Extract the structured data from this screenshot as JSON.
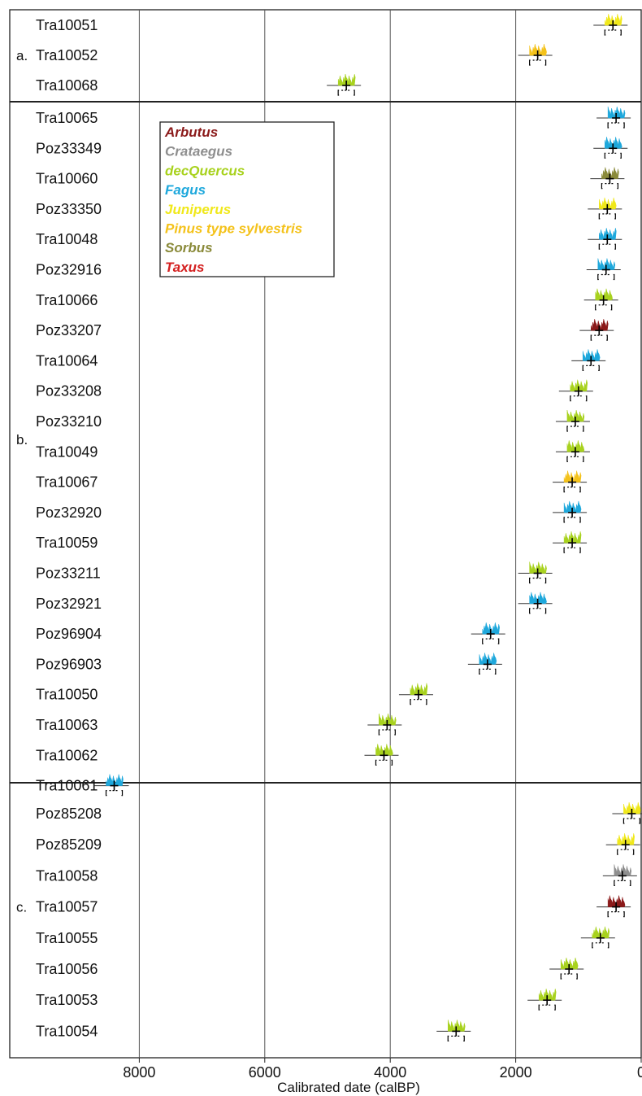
{
  "chart_data": {
    "type": "scatter",
    "xlabel": "Calibrated date (calBP)",
    "xlim": [
      8600,
      0
    ],
    "x_ticks": [
      8000,
      6000,
      4000,
      2000,
      0
    ],
    "x_reversed": true,
    "grid": "vertical",
    "legend_position": "top-left",
    "legend": [
      {
        "name": "Arbutus",
        "color": "#8b1a1a"
      },
      {
        "name": "Crataegus",
        "color": "#8e8e8e"
      },
      {
        "name": "decQuercus",
        "color": "#a8d21e"
      },
      {
        "name": "Fagus",
        "color": "#1ea8dc"
      },
      {
        "name": "Juniperus",
        "color": "#f0e81a"
      },
      {
        "name": "Pinus type sylvestris",
        "color": "#f4c21a"
      },
      {
        "name": "Sorbus",
        "color": "#8a8a3a"
      },
      {
        "name": "Taxus",
        "color": "#d42020"
      }
    ],
    "groups": [
      {
        "label": "a.",
        "samples": [
          {
            "name": "Tra10051",
            "date": 450,
            "taxon": "Juniperus"
          },
          {
            "name": "Tra10052",
            "date": 1650,
            "taxon": "Pinus type sylvestris"
          },
          {
            "name": "Tra10068",
            "date": 4700,
            "taxon": "decQuercus"
          }
        ]
      },
      {
        "label": "b.",
        "samples": [
          {
            "name": "Tra10065",
            "date": 400,
            "taxon": "Fagus"
          },
          {
            "name": "Poz33349",
            "date": 450,
            "taxon": "Fagus"
          },
          {
            "name": "Tra10060",
            "date": 500,
            "taxon": "Sorbus"
          },
          {
            "name": "Poz33350",
            "date": 540,
            "taxon": "Juniperus"
          },
          {
            "name": "Tra10048",
            "date": 540,
            "taxon": "Fagus"
          },
          {
            "name": "Poz32916",
            "date": 560,
            "taxon": "Fagus"
          },
          {
            "name": "Tra10066",
            "date": 600,
            "taxon": "decQuercus"
          },
          {
            "name": "Poz33207",
            "date": 670,
            "taxon": "Arbutus"
          },
          {
            "name": "Tra10064",
            "date": 800,
            "taxon": "Fagus"
          },
          {
            "name": "Poz33208",
            "date": 1000,
            "taxon": "decQuercus"
          },
          {
            "name": "Poz33210",
            "date": 1050,
            "taxon": "decQuercus"
          },
          {
            "name": "Tra10049",
            "date": 1050,
            "taxon": "decQuercus"
          },
          {
            "name": "Tra10067",
            "date": 1100,
            "taxon": "Pinus type sylvestris"
          },
          {
            "name": "Poz32920",
            "date": 1100,
            "taxon": "Fagus"
          },
          {
            "name": "Tra10059",
            "date": 1100,
            "taxon": "decQuercus"
          },
          {
            "name": "Poz33211",
            "date": 1650,
            "taxon": "decQuercus"
          },
          {
            "name": "Poz32921",
            "date": 1650,
            "taxon": "Fagus"
          },
          {
            "name": "Poz96904",
            "date": 2400,
            "taxon": "Fagus"
          },
          {
            "name": "Poz96903",
            "date": 2450,
            "taxon": "Fagus"
          },
          {
            "name": "Tra10050",
            "date": 3550,
            "taxon": "decQuercus"
          },
          {
            "name": "Tra10063",
            "date": 4050,
            "taxon": "decQuercus"
          },
          {
            "name": "Tra10062",
            "date": 4100,
            "taxon": "decQuercus"
          },
          {
            "name": "Tra10061",
            "date": 8400,
            "taxon": "Fagus"
          }
        ]
      },
      {
        "label": "c.",
        "samples": [
          {
            "name": "Poz85208",
            "date": 150,
            "taxon": "Juniperus"
          },
          {
            "name": "Poz85209",
            "date": 250,
            "taxon": "Juniperus"
          },
          {
            "name": "Tra10058",
            "date": 300,
            "taxon": "Crataegus"
          },
          {
            "name": "Tra10057",
            "date": 400,
            "taxon": "Arbutus"
          },
          {
            "name": "Tra10055",
            "date": 650,
            "taxon": "decQuercus"
          },
          {
            "name": "Tra10056",
            "date": 1150,
            "taxon": "decQuercus"
          },
          {
            "name": "Tra10053",
            "date": 1500,
            "taxon": "decQuercus"
          },
          {
            "name": "Tra10054",
            "date": 2950,
            "taxon": "decQuercus"
          }
        ]
      }
    ]
  }
}
